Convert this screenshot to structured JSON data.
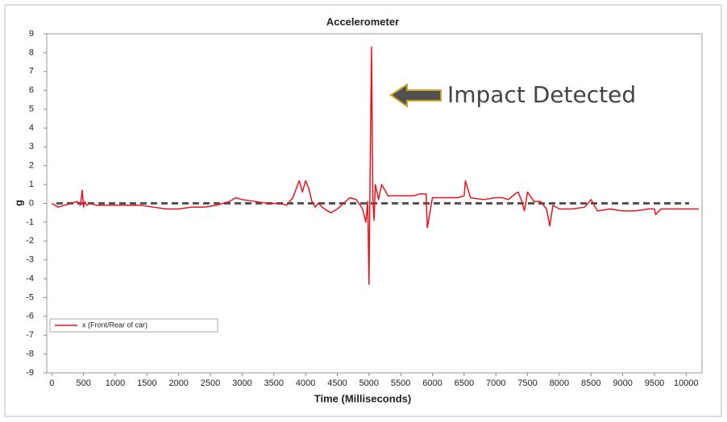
{
  "chart_data": {
    "type": "line",
    "title": "Accelerometer",
    "x_label": "Time (Milliseconds)",
    "y_label": "g",
    "annotation": "Impact Detected",
    "x": [
      0,
      100,
      200,
      300,
      400,
      450,
      480,
      500,
      520,
      550,
      600,
      700,
      800,
      1000,
      1200,
      1400,
      1600,
      1800,
      2000,
      2200,
      2400,
      2600,
      2800,
      2900,
      3000,
      3200,
      3400,
      3600,
      3700,
      3800,
      3900,
      3950,
      4000,
      4050,
      4100,
      4150,
      4200,
      4300,
      4400,
      4500,
      4600,
      4700,
      4800,
      4900,
      4950,
      4980,
      5000,
      5020,
      5040,
      5060,
      5080,
      5100,
      5150,
      5200,
      5300,
      5500,
      5700,
      5800,
      5900,
      5920,
      6000,
      6200,
      6400,
      6500,
      6520,
      6600,
      6800,
      7000,
      7100,
      7200,
      7300,
      7350,
      7400,
      7450,
      7500,
      7600,
      7700,
      7800,
      7850,
      7900,
      8000,
      8200,
      8400,
      8500,
      8600,
      8800,
      9000,
      9200,
      9400,
      9500,
      9520,
      9600,
      9800,
      10000,
      10200
    ],
    "series": [
      {
        "name": "x (Front/Rear of car)",
        "color": "#e8141b",
        "values": [
          0,
          -0.2,
          -0.1,
          0,
          0.1,
          -0.1,
          0.7,
          -0.2,
          0.1,
          -0.1,
          0,
          -0.1,
          -0.1,
          -0.1,
          -0.1,
          -0.1,
          -0.2,
          -0.3,
          -0.3,
          -0.2,
          -0.2,
          -0.1,
          0.1,
          0.3,
          0.2,
          0.1,
          0,
          0,
          -0.1,
          0.3,
          1.2,
          0.6,
          1.2,
          0.8,
          0.1,
          -0.2,
          0,
          -0.3,
          -0.5,
          -0.3,
          0,
          0.3,
          0.2,
          -0.3,
          -1,
          0.1,
          -4.3,
          2.2,
          8.3,
          0.3,
          -0.9,
          1,
          0.2,
          1,
          0.4,
          0.4,
          0.4,
          0.5,
          0.5,
          -1.3,
          0.3,
          0.3,
          0.3,
          0.4,
          1.2,
          0.3,
          0.2,
          0.3,
          0.3,
          0.2,
          0.5,
          0.6,
          0.2,
          -0.4,
          0.6,
          0.1,
          0.1,
          -0.3,
          -1.2,
          -0.1,
          -0.3,
          -0.3,
          -0.2,
          0.2,
          -0.4,
          -0.3,
          -0.4,
          -0.4,
          -0.3,
          -0.3,
          -0.6,
          -0.3,
          -0.3,
          -0.3,
          -0.3
        ]
      }
    ],
    "reference_line": {
      "value": 0,
      "color": "#555555",
      "dashed": true
    },
    "xlim": [
      -80,
      10250
    ],
    "xticks": [
      0,
      500,
      1000,
      1500,
      2000,
      2500,
      3000,
      3500,
      4000,
      4500,
      5000,
      5500,
      6000,
      6500,
      7000,
      7500,
      8000,
      8500,
      9000,
      9500,
      10000
    ],
    "ylim": [
      -9,
      9
    ],
    "yticks": [
      -9,
      -8,
      -7,
      -6,
      -5,
      -4,
      -3,
      -2,
      -1,
      0,
      1,
      2,
      3,
      4,
      5,
      6,
      7,
      8,
      9
    ],
    "grid": false,
    "legend": "lower-left"
  }
}
